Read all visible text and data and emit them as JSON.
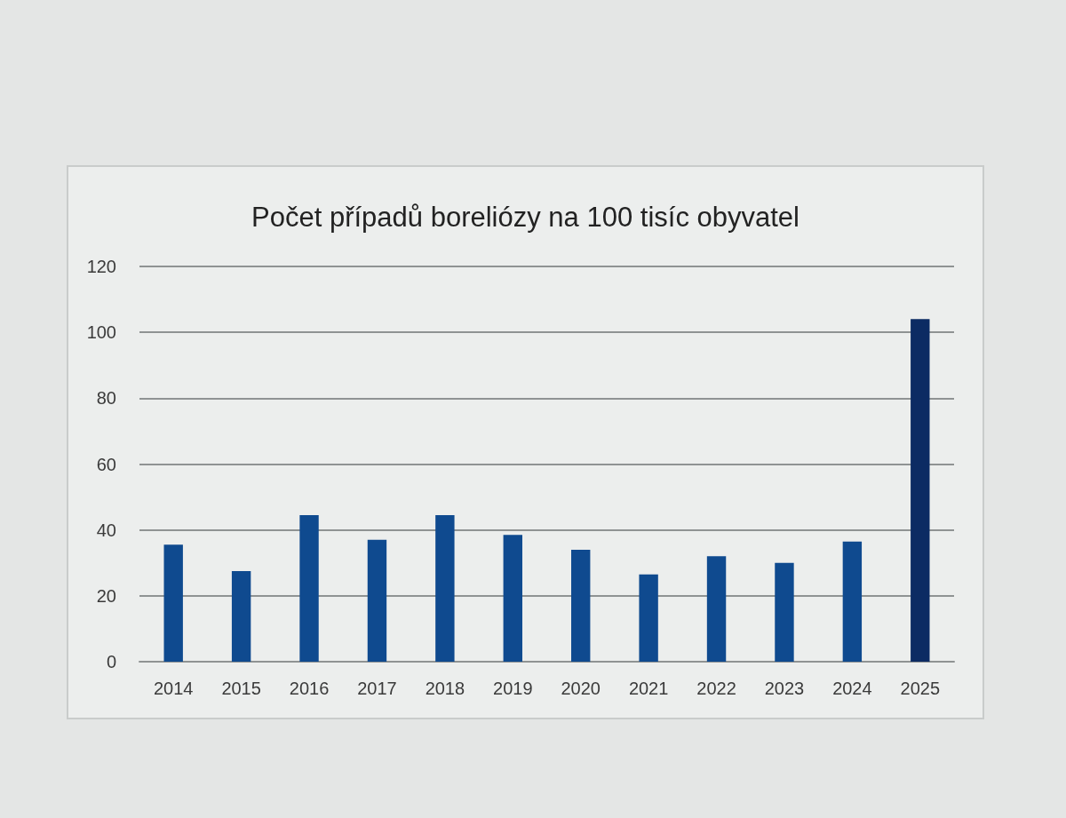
{
  "chart_data": {
    "type": "bar",
    "title": "Počet případů boreliózy na 100 tisíc obyvatel",
    "categories": [
      "2014",
      "2015",
      "2016",
      "2017",
      "2018",
      "2019",
      "2020",
      "2021",
      "2022",
      "2023",
      "2024",
      "2025"
    ],
    "values": [
      35.5,
      27.5,
      44.5,
      37,
      44.5,
      38.5,
      34,
      26.5,
      32,
      30,
      36.5,
      104
    ],
    "colors": [
      "#0f4a8f",
      "#0f4a8f",
      "#0f4a8f",
      "#0f4a8f",
      "#0f4a8f",
      "#0f4a8f",
      "#0f4a8f",
      "#0f4a8f",
      "#0f4a8f",
      "#0f4a8f",
      "#0f4a8f",
      "#0c2b63"
    ],
    "ylim": [
      0,
      120
    ],
    "yticks": [
      0,
      20,
      40,
      60,
      80,
      100,
      120
    ],
    "grid": "y"
  }
}
